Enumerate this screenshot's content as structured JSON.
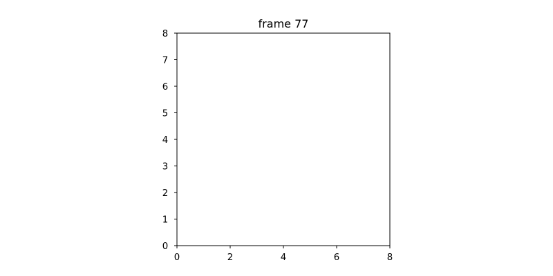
{
  "chart_data": {
    "type": "scatter",
    "title": "frame 77",
    "xlabel": "",
    "ylabel": "",
    "xlim": [
      0,
      8
    ],
    "ylim": [
      0,
      8
    ],
    "xticks": [
      0,
      2,
      4,
      6,
      8
    ],
    "yticks": [
      0,
      1,
      2,
      3,
      4,
      5,
      6,
      7,
      8
    ],
    "grid": false,
    "series": []
  },
  "colors": {
    "axes": "#000000",
    "background": "#ffffff"
  }
}
